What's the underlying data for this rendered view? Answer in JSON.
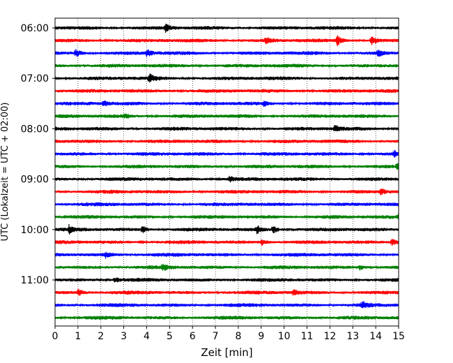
{
  "chart_data": {
    "type": "line",
    "title": "",
    "xlabel": "Zeit  [min]",
    "ylabel": "UTC (Lokalzeit = UTC + 02:00)",
    "xlim": [
      0,
      15
    ],
    "x_ticks": [
      "0",
      "1",
      "2",
      "3",
      "4",
      "5",
      "6",
      "7",
      "8",
      "9",
      "10",
      "11",
      "12",
      "13",
      "14",
      "15"
    ],
    "y_ticks": [
      "06:00",
      "07:00",
      "08:00",
      "09:00",
      "10:00",
      "11:00"
    ],
    "grid": "vertical dotted lines at each minute",
    "color_cycle": [
      "#000000",
      "#ff0000",
      "#0000ff",
      "#008000"
    ],
    "trace_interval_min": 15,
    "first_trace": "06:00",
    "trace_count": 24,
    "events": [
      {
        "trace": 0,
        "x": 4.8,
        "amp": 0.9
      },
      {
        "trace": 1,
        "x": 9.2,
        "amp": 0.7
      },
      {
        "trace": 1,
        "x": 12.3,
        "amp": 1.2
      },
      {
        "trace": 1,
        "x": 13.8,
        "amp": 1.1
      },
      {
        "trace": 2,
        "x": 0.9,
        "amp": 0.9
      },
      {
        "trace": 2,
        "x": 4.0,
        "amp": 0.9
      },
      {
        "trace": 2,
        "x": 14.1,
        "amp": 0.8
      },
      {
        "trace": 4,
        "x": 4.1,
        "amp": 1.1
      },
      {
        "trace": 6,
        "x": 2.1,
        "amp": 0.7
      },
      {
        "trace": 6,
        "x": 9.1,
        "amp": 0.5
      },
      {
        "trace": 7,
        "x": 3.0,
        "amp": 0.5
      },
      {
        "trace": 8,
        "x": 12.2,
        "amp": 0.9
      },
      {
        "trace": 10,
        "x": 14.8,
        "amp": 0.6
      },
      {
        "trace": 11,
        "x": 14.9,
        "amp": 0.6
      },
      {
        "trace": 12,
        "x": 7.6,
        "amp": 0.6
      },
      {
        "trace": 13,
        "x": 14.2,
        "amp": 0.7
      },
      {
        "trace": 15,
        "x": 15.0,
        "amp": 1.0
      },
      {
        "trace": 16,
        "x": 0.6,
        "amp": 0.9
      },
      {
        "trace": 16,
        "x": 3.8,
        "amp": 0.8
      },
      {
        "trace": 16,
        "x": 8.8,
        "amp": 0.9
      },
      {
        "trace": 16,
        "x": 9.5,
        "amp": 0.9
      },
      {
        "trace": 17,
        "x": 9.0,
        "amp": 0.8
      },
      {
        "trace": 17,
        "x": 14.7,
        "amp": 1.0
      },
      {
        "trace": 18,
        "x": 2.2,
        "amp": 0.6
      },
      {
        "trace": 19,
        "x": 4.7,
        "amp": 0.6
      },
      {
        "trace": 19,
        "x": 13.3,
        "amp": 0.6
      },
      {
        "trace": 20,
        "x": 2.6,
        "amp": 0.6
      },
      {
        "trace": 21,
        "x": 1.0,
        "amp": 0.8
      },
      {
        "trace": 21,
        "x": 10.4,
        "amp": 0.7
      },
      {
        "trace": 22,
        "x": 13.4,
        "amp": 0.9
      }
    ]
  }
}
